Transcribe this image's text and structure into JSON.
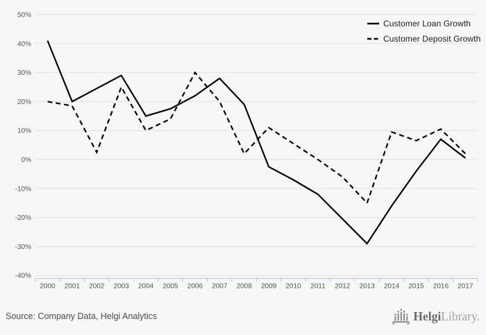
{
  "chart_data": {
    "type": "line",
    "title": "",
    "xlabel": "",
    "ylabel": "",
    "categories": [
      "2000",
      "2001",
      "2002",
      "2003",
      "2004",
      "2005",
      "2006",
      "2007",
      "2008",
      "2009",
      "2010",
      "2011",
      "2012",
      "2013",
      "2014",
      "2015",
      "2016",
      "2017"
    ],
    "series": [
      {
        "name": "Customer Loan Growth",
        "style": "solid",
        "values": [
          41,
          20,
          24.5,
          29,
          15,
          17.5,
          22,
          28,
          19,
          -2.5,
          -7,
          -12,
          -20.5,
          -29,
          -16,
          -4,
          7,
          0.5
        ]
      },
      {
        "name": "Customer Deposit Growth",
        "style": "dashed",
        "values": [
          20,
          18.5,
          2.5,
          25,
          10,
          14,
          30,
          20,
          2,
          11,
          5.5,
          0,
          -6,
          -15,
          9.5,
          6.5,
          10.5,
          2
        ]
      }
    ],
    "ylim": [
      -40,
      50
    ],
    "ytick_step": 10,
    "ytick_labels": [
      "50%",
      "40%",
      "30%",
      "20%",
      "10%",
      "0%",
      "-10%",
      "-20%",
      "-30%",
      "-40%"
    ],
    "grid": "horizontal",
    "legend_position": "top-right",
    "colors": {
      "line": "#000000",
      "background": "#f7f7f7",
      "gridline": "#e2e2e2",
      "axis": "#b9c1d2",
      "tick_label": "#555555"
    }
  },
  "footer": {
    "source": "Source: Company Data, Helgi Analytics",
    "logo_primary": "Helgi",
    "logo_secondary": "Library."
  }
}
